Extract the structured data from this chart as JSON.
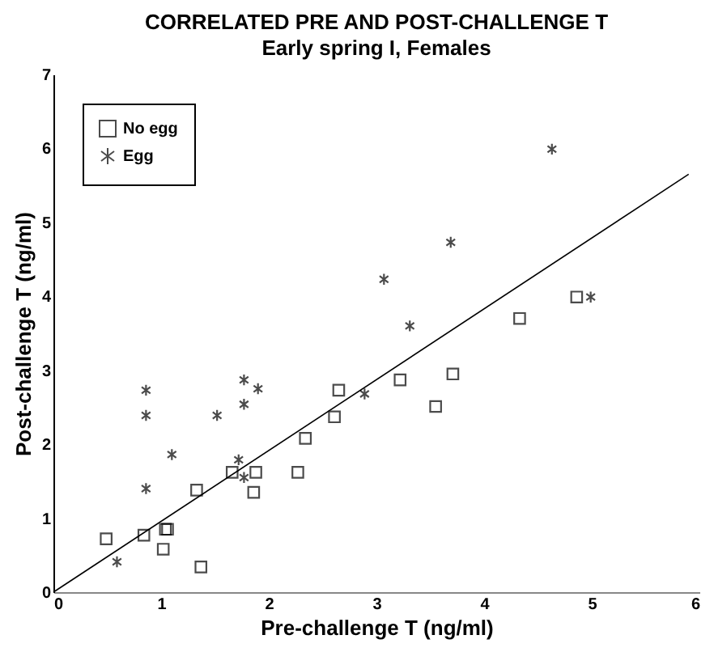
{
  "chart_data": {
    "type": "scatter",
    "title": "CORRELATED PRE AND POST-CHALLENGE T",
    "subtitle": "Early spring I, Females",
    "xlabel": "Pre-challenge T (ng/ml)",
    "ylabel": "Post-challenge T (ng/ml)",
    "xlim": [
      0,
      6
    ],
    "ylim": [
      0,
      7
    ],
    "xticks": [
      0,
      1,
      2,
      3,
      4,
      5,
      6
    ],
    "yticks": [
      0,
      1,
      2,
      3,
      4,
      5,
      6,
      7
    ],
    "grid": false,
    "legend": "top left",
    "series": [
      {
        "name": "No egg",
        "color": "#000000",
        "marker": "square",
        "x": [
          0.49,
          0.84,
          1.04,
          1.06,
          1.02,
          1.37,
          1.33,
          1.66,
          1.88,
          1.86,
          2.27,
          2.34,
          2.61,
          2.65,
          3.22,
          3.55,
          3.71,
          4.33,
          4.86
        ],
        "values": [
          0.72,
          0.77,
          0.85,
          0.85,
          0.58,
          0.34,
          1.38,
          1.62,
          1.62,
          1.35,
          1.62,
          2.08,
          2.37,
          2.73,
          2.87,
          2.51,
          2.95,
          3.7,
          3.99
        ]
      },
      {
        "name": "Egg",
        "color": "#000000",
        "marker": "cross",
        "x": [
          0.59,
          0.86,
          0.86,
          0.86,
          1.1,
          1.52,
          1.77,
          1.77,
          1.9,
          1.72,
          1.77,
          2.89,
          3.31,
          3.07,
          3.69,
          4.63,
          4.99
        ],
        "values": [
          0.41,
          2.73,
          2.39,
          1.4,
          1.86,
          2.39,
          2.87,
          2.54,
          2.75,
          1.79,
          1.55,
          2.68,
          3.6,
          4.23,
          4.73,
          5.99,
          3.99
        ]
      },
      {
        "type": "line",
        "color": "#000000",
        "x": [
          0,
          5.9
        ],
        "values": [
          0,
          5.65
        ]
      }
    ]
  }
}
